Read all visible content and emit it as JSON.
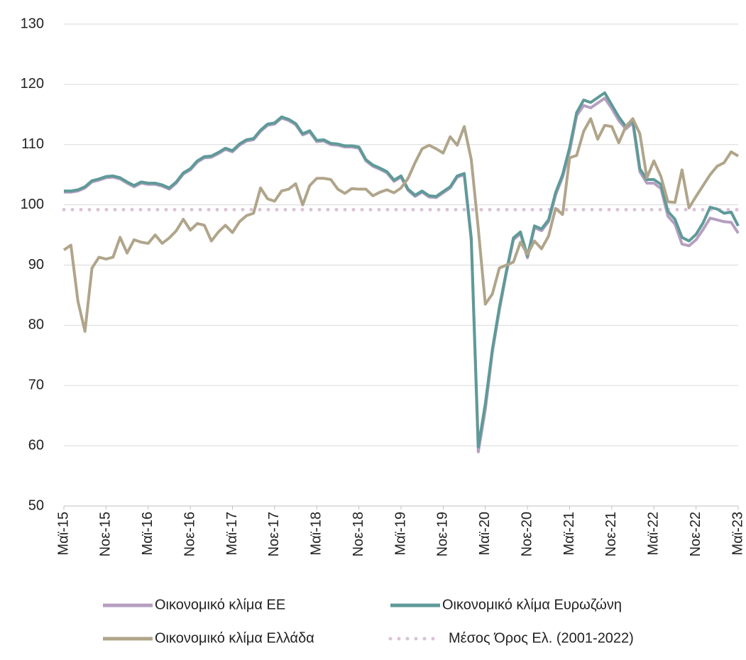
{
  "chart_data": {
    "type": "line",
    "categories": [
      "Μαϊ-15",
      null,
      null,
      null,
      null,
      null,
      "Νοε-15",
      null,
      null,
      null,
      null,
      null,
      "Μαϊ-16",
      null,
      null,
      null,
      null,
      null,
      "Νοε-16",
      null,
      null,
      null,
      null,
      null,
      "Μαϊ-17",
      null,
      null,
      null,
      null,
      null,
      "Νοε-17",
      null,
      null,
      null,
      null,
      null,
      "Μαϊ-18",
      null,
      null,
      null,
      null,
      null,
      "Νοε-18",
      null,
      null,
      null,
      null,
      null,
      "Μαϊ-19",
      null,
      null,
      null,
      null,
      null,
      "Νοε-19",
      null,
      null,
      null,
      null,
      null,
      "Μαϊ-20",
      null,
      null,
      null,
      null,
      null,
      "Νοε-20",
      null,
      null,
      null,
      null,
      null,
      "Μαϊ-21",
      null,
      null,
      null,
      null,
      null,
      "Νοε-21",
      null,
      null,
      null,
      null,
      null,
      "Μαϊ-22",
      null,
      null,
      null,
      null,
      null,
      "Νοε-22",
      null,
      null,
      null,
      null,
      null,
      "Μαϊ-23"
    ],
    "series": [
      {
        "name": "Οικονομικό κλίμα ΕΕ",
        "color": "#b59fc0",
        "values": [
          102.1,
          102.1,
          102.3,
          102.8,
          103.8,
          104.1,
          104.5,
          104.6,
          104.3,
          103.6,
          103.0,
          103.6,
          103.4,
          103.4,
          103.1,
          102.6,
          103.6,
          105.1,
          105.8,
          107.1,
          107.8,
          107.9,
          108.5,
          109.2,
          108.8,
          109.9,
          110.6,
          110.8,
          112.2,
          113.2,
          113.4,
          114.4,
          114.0,
          113.3,
          111.6,
          112.1,
          110.5,
          110.6,
          110.0,
          109.9,
          109.6,
          109.6,
          109.4,
          107.3,
          106.4,
          105.9,
          105.3,
          103.9,
          104.6,
          102.4,
          101.4,
          102.1,
          101.3,
          101.2,
          102.0,
          102.8,
          104.6,
          105.0,
          94.0,
          59.0,
          66.0,
          75.5,
          82.5,
          88.7,
          94.2,
          95.2,
          91.2,
          96.2,
          95.7,
          97.2,
          101.6,
          104.6,
          108.9,
          114.8,
          116.5,
          116.1,
          116.9,
          117.7,
          116.0,
          114.0,
          112.6,
          113.6,
          105.5,
          103.6,
          103.6,
          102.7,
          98.1,
          96.8,
          93.5,
          93.2,
          94.2,
          95.9,
          97.8,
          97.5,
          97.2,
          97.1,
          95.3
        ]
      },
      {
        "name": "Οικονομικό κλίμα Ευρωζώνη",
        "color": "#5e9a98",
        "values": [
          102.3,
          102.3,
          102.5,
          103.0,
          104.0,
          104.3,
          104.7,
          104.8,
          104.5,
          103.8,
          103.2,
          103.8,
          103.6,
          103.6,
          103.3,
          102.8,
          103.8,
          105.3,
          106.0,
          107.3,
          108.0,
          108.1,
          108.7,
          109.4,
          109.0,
          110.1,
          110.8,
          111.0,
          112.4,
          113.4,
          113.6,
          114.6,
          114.2,
          113.5,
          111.8,
          112.3,
          110.7,
          110.8,
          110.2,
          110.1,
          109.8,
          109.8,
          109.6,
          107.5,
          106.6,
          106.1,
          105.5,
          104.1,
          104.8,
          102.6,
          101.6,
          102.3,
          101.5,
          101.4,
          102.2,
          103.0,
          104.8,
          105.2,
          94.5,
          59.8,
          67.0,
          76.0,
          83.0,
          89.0,
          94.5,
          95.5,
          91.5,
          96.5,
          96.0,
          97.5,
          102.0,
          105.0,
          109.5,
          115.3,
          117.4,
          117.0,
          117.8,
          118.6,
          116.6,
          114.6,
          113.0,
          114.0,
          106.0,
          104.2,
          104.2,
          103.4,
          98.9,
          97.6,
          94.6,
          94.0,
          95.1,
          97.0,
          99.6,
          99.3,
          98.6,
          98.8,
          96.5
        ]
      },
      {
        "name": "Οικονομικό κλίμα Ελλάδα",
        "color": "#b0a58a",
        "values": [
          92.5,
          93.3,
          84.0,
          79.0,
          89.5,
          91.3,
          91.0,
          91.3,
          94.6,
          92.0,
          94.2,
          93.8,
          93.6,
          95.0,
          93.6,
          94.5,
          95.7,
          97.6,
          95.8,
          96.9,
          96.6,
          94.0,
          95.5,
          96.6,
          95.4,
          97.2,
          98.2,
          98.6,
          102.8,
          101.0,
          100.6,
          102.3,
          102.6,
          103.5,
          100.0,
          103.2,
          104.4,
          104.4,
          104.2,
          102.6,
          101.9,
          102.7,
          102.6,
          102.6,
          101.5,
          102.1,
          102.5,
          102.0,
          102.8,
          104.4,
          107.0,
          109.3,
          109.9,
          109.3,
          108.6,
          111.3,
          109.9,
          113.0,
          107.5,
          96.0,
          83.5,
          85.2,
          89.5,
          90.0,
          90.5,
          93.8,
          91.8,
          94.0,
          92.7,
          94.8,
          99.4,
          98.4,
          107.8,
          108.2,
          112.2,
          114.3,
          110.9,
          113.2,
          113.0,
          110.3,
          113.0,
          114.3,
          111.8,
          104.5,
          107.3,
          104.7,
          100.5,
          100.4,
          105.8,
          99.5,
          101.4,
          103.2,
          105.0,
          106.4,
          107.0,
          108.8,
          108.1
        ]
      },
      {
        "name": "Μέσος Όρος Ελ. (2001-2022)",
        "color": "#d9c3d9",
        "line_style": "dotted",
        "values": [
          99.2,
          99.2,
          99.2,
          99.2,
          99.2,
          99.2,
          99.2,
          99.2,
          99.2,
          99.2,
          99.2,
          99.2,
          99.2,
          99.2,
          99.2,
          99.2,
          99.2,
          99.2,
          99.2,
          99.2,
          99.2,
          99.2,
          99.2,
          99.2,
          99.2,
          99.2,
          99.2,
          99.2,
          99.2,
          99.2,
          99.2,
          99.2,
          99.2,
          99.2,
          99.2,
          99.2,
          99.2,
          99.2,
          99.2,
          99.2,
          99.2,
          99.2,
          99.2,
          99.2,
          99.2,
          99.2,
          99.2,
          99.2,
          99.2,
          99.2,
          99.2,
          99.2,
          99.2,
          99.2,
          99.2,
          99.2,
          99.2,
          99.2,
          99.2,
          99.2,
          99.2,
          99.2,
          99.2,
          99.2,
          99.2,
          99.2,
          99.2,
          99.2,
          99.2,
          99.2,
          99.2,
          99.2,
          99.2,
          99.2,
          99.2,
          99.2,
          99.2,
          99.2,
          99.2,
          99.2,
          99.2,
          99.2,
          99.2,
          99.2,
          99.2,
          99.2,
          99.2,
          99.2,
          99.2,
          99.2,
          99.2,
          99.2,
          99.2,
          99.2,
          99.2,
          99.2,
          99.2
        ]
      }
    ],
    "ylim": [
      50,
      130
    ],
    "yticks": [
      50,
      60,
      70,
      80,
      90,
      100,
      110,
      120,
      130
    ],
    "grid": true,
    "legend": "bottom"
  }
}
